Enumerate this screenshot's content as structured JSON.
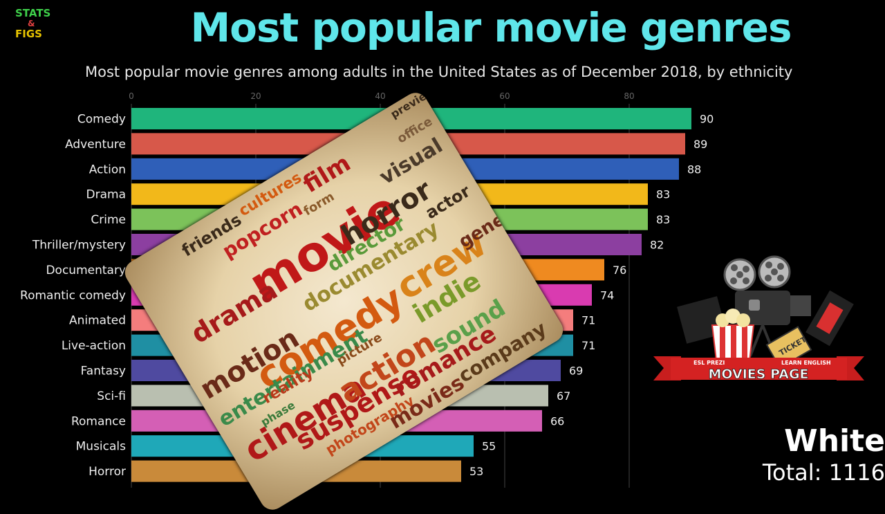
{
  "logo": {
    "line1": "STATS",
    "line2": "&",
    "line3": "FIGS"
  },
  "title": "Most popular movie genres",
  "subtitle": "Most popular movie genres among adults in the United States as of December 2018, by ethnicity",
  "ethnicity": "White",
  "total_label": "Total: 1116",
  "badge": {
    "left_text": "ESL PREZI",
    "right_text": "LEARN ENGLISH",
    "banner": "MOVIES PAGE",
    "ticket": "TICKET"
  },
  "word_cloud": [
    "movie",
    "comedy",
    "crew",
    "horror",
    "film",
    "popcorn",
    "motion",
    "drama",
    "cinema",
    "suspense",
    "action",
    "indie",
    "sound",
    "documentary",
    "visual",
    "entertainment",
    "reality",
    "company",
    "romance",
    "actor",
    "general",
    "office",
    "picture",
    "phase",
    "director",
    "friends",
    "cultures",
    "form",
    "preview",
    "photography",
    "movies"
  ],
  "chart_data": {
    "type": "bar",
    "orientation": "horizontal",
    "categories": [
      "Comedy",
      "Adventure",
      "Action",
      "Drama",
      "Crime",
      "Thriller/mystery",
      "Documentary",
      "Romantic comedy",
      "Animated",
      "Live-action",
      "Fantasy",
      "Sci-fi",
      "Romance",
      "Musicals",
      "Horror"
    ],
    "values": [
      90,
      89,
      88,
      83,
      83,
      82,
      76,
      74,
      71,
      71,
      69,
      67,
      66,
      55,
      53
    ],
    "colors": [
      "#1fb57c",
      "#d7584a",
      "#2f5fb8",
      "#f2b81a",
      "#7cc25a",
      "#8c3fa0",
      "#ef8a20",
      "#d93bb0",
      "#f47d7d",
      "#1f8fa3",
      "#4f4aa0",
      "#b9bfb0",
      "#d45fb5",
      "#1fa8b8",
      "#c98a3a"
    ],
    "xticks": [
      0,
      20,
      40,
      60,
      80
    ],
    "xlim": [
      0,
      90
    ],
    "grid": true,
    "title": "Most popular movie genres",
    "subtitle": "Most popular movie genres among adults in the United States as of December 2018, by ethnicity",
    "xlabel": "",
    "ylabel": ""
  }
}
